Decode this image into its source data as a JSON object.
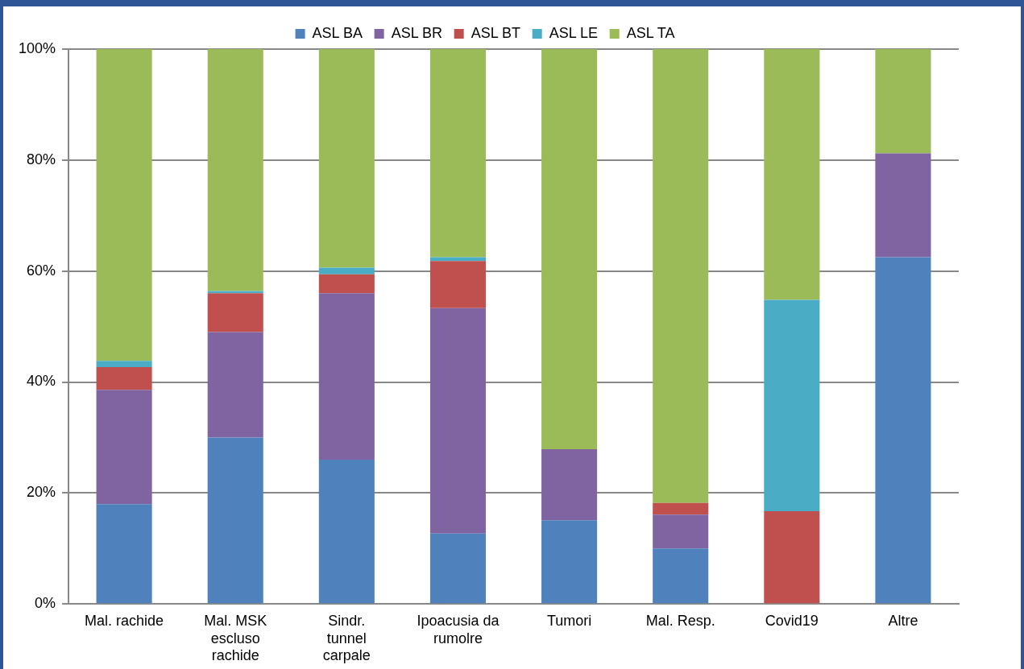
{
  "chart_data": {
    "type": "bar",
    "stacked": true,
    "categories": [
      "Mal. rachide",
      "Mal. MSK escluso rachide",
      "Sindr. tunnel carpale",
      "Ipoacusia da rumolre",
      "Tumori",
      "Mal. Resp.",
      "Covid19",
      "Altre"
    ],
    "series": [
      {
        "name": "ASL BA",
        "color": "#4f81bd",
        "values": [
          18,
          30,
          26,
          12.7,
          15.1,
          10,
          0,
          62.5
        ]
      },
      {
        "name": "ASL BR",
        "color": "#8064a2",
        "values": [
          20.6,
          19,
          30,
          40.6,
          12.8,
          6.1,
          0,
          18.7
        ]
      },
      {
        "name": "ASL BT",
        "color": "#c0504d",
        "values": [
          4.1,
          7,
          3.4,
          8.5,
          0,
          2.1,
          16.7,
          0
        ]
      },
      {
        "name": "ASL LE",
        "color": "#4bacc6",
        "values": [
          1.1,
          0.4,
          1.2,
          0.7,
          0,
          0,
          38.1,
          0
        ]
      },
      {
        "name": "ASL TA",
        "color": "#9bbb59",
        "values": [
          56.2,
          43.6,
          39.4,
          37.5,
          72.1,
          81.8,
          45.2,
          18.8
        ]
      }
    ],
    "ylim": [
      0,
      100
    ],
    "yticks": [
      {
        "value": 0,
        "label": "0%"
      },
      {
        "value": 20,
        "label": "20%"
      },
      {
        "value": 40,
        "label": "40%"
      },
      {
        "value": 60,
        "label": "60%"
      },
      {
        "value": 80,
        "label": "80%"
      },
      {
        "value": 100,
        "label": "100%"
      }
    ],
    "grid": "y",
    "legend": "top"
  }
}
